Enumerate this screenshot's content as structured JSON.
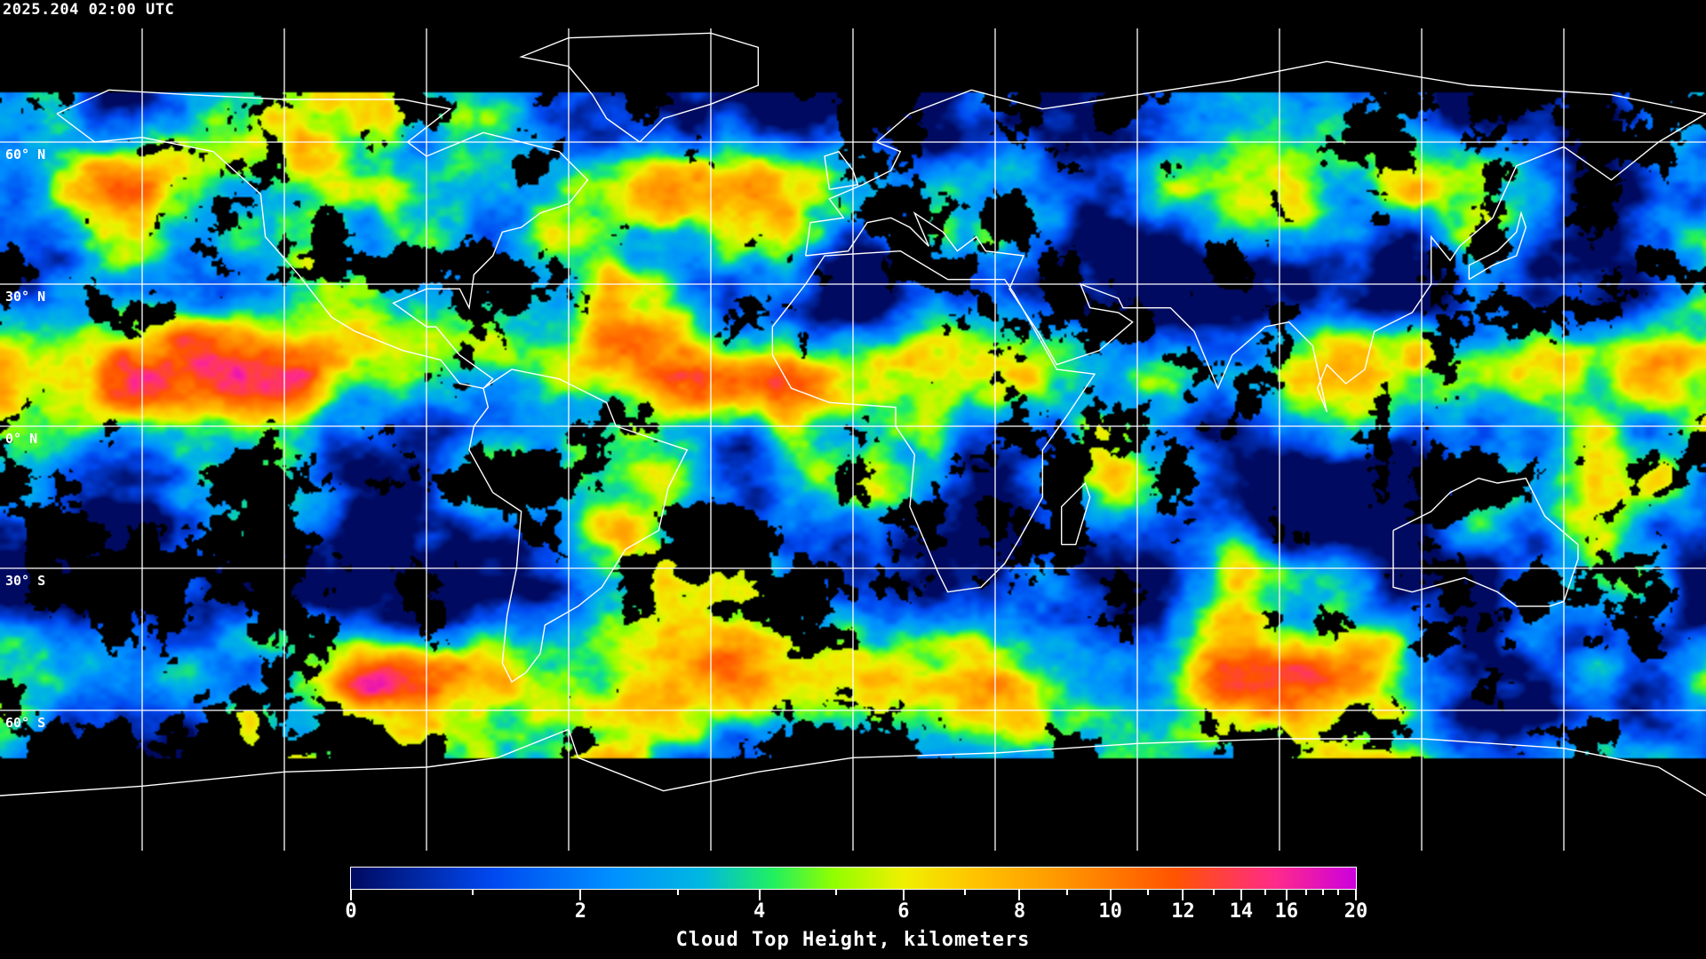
{
  "header": {
    "timestamp": "2025.204 02:00 UTC"
  },
  "map": {
    "projection": "equirectangular",
    "lon_range": [
      -180,
      180
    ],
    "lat_range": [
      -90,
      90
    ],
    "gridlines": "every 30 degrees",
    "gridline_color": "#ffffff",
    "coastline_color": "#ffffff",
    "background": "#000000",
    "lat_labels": [
      {
        "lat": 60,
        "text": "60° N"
      },
      {
        "lat": 30,
        "text": "30° N"
      },
      {
        "lat": 0,
        "text": "0° N"
      },
      {
        "lat": -30,
        "text": "30° S"
      },
      {
        "lat": -60,
        "text": "60° S"
      }
    ]
  },
  "colorbar": {
    "title": "Cloud Top Height, kilometers",
    "range": [
      0,
      20
    ],
    "major_ticks": [
      "0",
      "2",
      "4",
      "6",
      "8",
      "10",
      "12",
      "14",
      "16",
      "20"
    ],
    "minor_ticks": [
      1,
      3,
      5,
      7,
      9,
      11,
      13,
      15,
      17,
      18,
      19
    ],
    "color_stops": [
      "#000a60",
      "#0048f0",
      "#0090ff",
      "#00b8e0",
      "#20f060",
      "#90ff00",
      "#f0f000",
      "#ffc400",
      "#ff9a00",
      "#ff5400",
      "#ff2a8a",
      "#cc00dd"
    ]
  }
}
